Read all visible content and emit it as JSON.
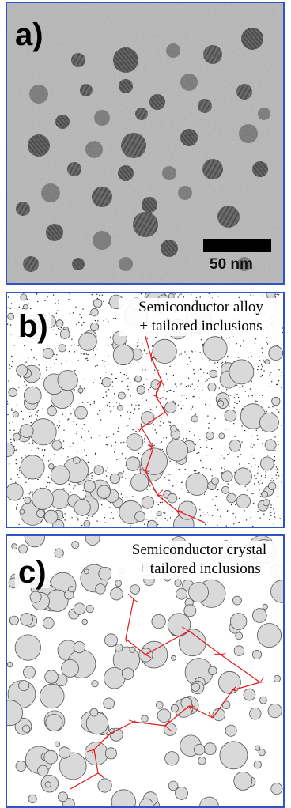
{
  "panels": [
    {
      "letter": "a)",
      "scale_bar_label": "50 nm"
    },
    {
      "letter": "b)",
      "caption_line1": "Semiconductor alloy",
      "caption_line2": "+ tailored inclusions"
    },
    {
      "letter": "c)",
      "caption_line1": "Semiconductor crystal",
      "caption_line2": "+ tailored inclusions"
    }
  ],
  "colors": {
    "frame": "#2f54c8",
    "path": "#e0191c",
    "inclusion_fill": "#d9d9d9",
    "inclusion_stroke": "#555555"
  }
}
